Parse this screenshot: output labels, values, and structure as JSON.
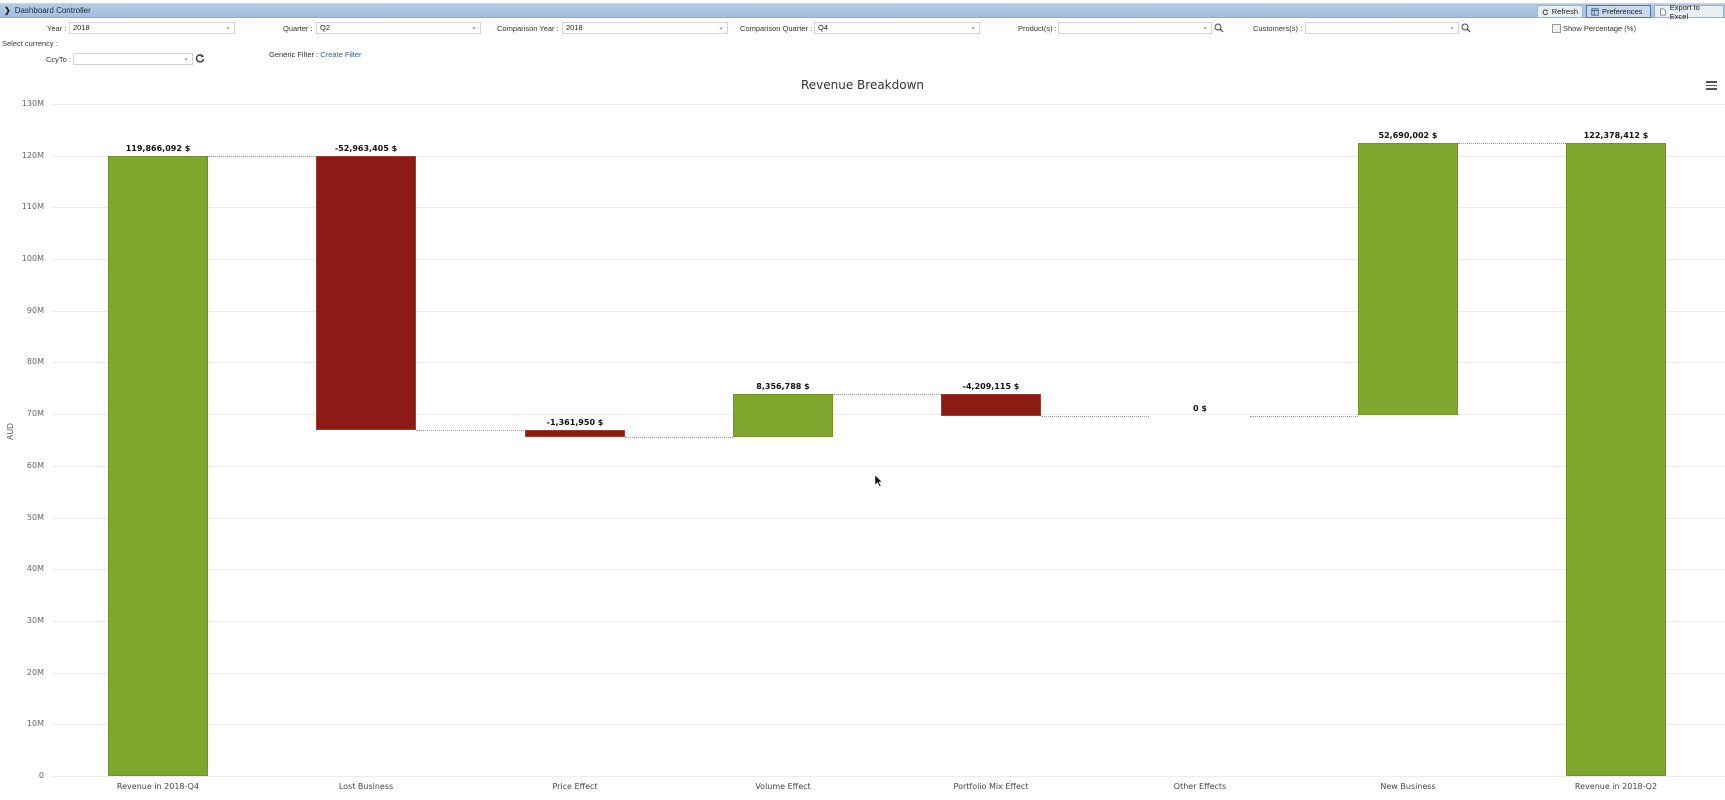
{
  "controller": {
    "title": "Dashboard Controller",
    "buttons": [
      {
        "label": "Refresh",
        "icon": "refresh-icon"
      },
      {
        "label": "Preferences",
        "icon": "columns-icon",
        "active": true
      },
      {
        "label": "Export to Excel",
        "icon": "document-icon"
      }
    ]
  },
  "filters": {
    "year": {
      "label": "Year :",
      "value": "2018"
    },
    "quarter": {
      "label": "Quarter :",
      "value": "Q2"
    },
    "comparison_year": {
      "label": "Comparison Year :",
      "value": "2018"
    },
    "comparison_quarter": {
      "label": "Comparison Quarter :",
      "value": "Q4"
    },
    "products": {
      "label": "Product(s) :",
      "value": ""
    },
    "customers": {
      "label": "Customers(s) :",
      "value": ""
    },
    "show_percentage": {
      "label": "Show Percentage (%)",
      "checked": false
    },
    "select_currency_label": "Select currency :",
    "ccy_to": {
      "label": "CcyTo :",
      "value": ""
    },
    "generic_filter": {
      "label": "Generic Filter :",
      "link": "Create Filter"
    }
  },
  "colors": {
    "positive": "#7ea72e",
    "negative": "#8d1b15"
  },
  "chart_data": {
    "type": "bar",
    "subtype": "waterfall",
    "title": "Revenue Breakdown",
    "xlabel": "",
    "ylabel": "AUD",
    "ylim": [
      0,
      130000000
    ],
    "yticks": [
      "0",
      "10M",
      "20M",
      "30M",
      "40M",
      "50M",
      "60M",
      "70M",
      "80M",
      "90M",
      "100M",
      "110M",
      "120M",
      "130M"
    ],
    "grid": true,
    "legend": "none",
    "categories": [
      "Revenue in 2018-Q4",
      "Lost Business",
      "Price Effect",
      "Volume Effect",
      "Portfolio Mix Effect",
      "Other Effects",
      "New Business",
      "Revenue in 2018-Q2"
    ],
    "values": [
      119866092,
      -52963405,
      -1361950,
      8356788,
      -4209115,
      0,
      52690002,
      122378412
    ],
    "labels": [
      "119,866,092 $",
      "-52,963,405 $",
      "-1,361,950 $",
      "8,356,788 $",
      "-4,209,115 $",
      "0 $",
      "52,690,002 $",
      "122,378,412 $"
    ],
    "is_total": [
      true,
      false,
      false,
      false,
      false,
      false,
      false,
      true
    ]
  }
}
